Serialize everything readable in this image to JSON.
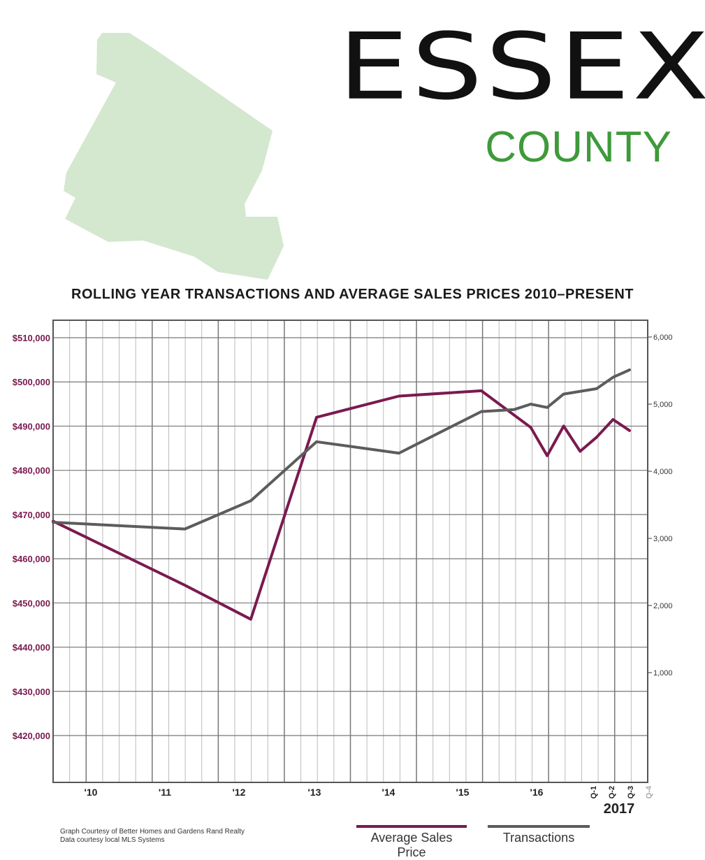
{
  "header": {
    "title": "ESSEX",
    "subtitle": "COUNTY"
  },
  "colors": {
    "map_fill": "#d4e7cf",
    "subtitle": "#3e9a3a",
    "price_line": "#7a1a4f",
    "transactions_line": "#5c5c5c",
    "grid_major": "#777777",
    "grid_minor": "#bbbbbb",
    "axis_label_left": "#7a1a4f"
  },
  "chart_data": {
    "type": "line",
    "title": "ROLLING YEAR TRANSACTIONS AND AVERAGE SALES PRICES 2010–PRESENT",
    "x_tick_labels": [
      "'10",
      "'11",
      "'12",
      "'13",
      "'14",
      "'15",
      "'16",
      "Q-1",
      "Q-2",
      "Q-3",
      "Q-4"
    ],
    "x_year_label": "2017",
    "left_axis": {
      "ticks": [
        "$510,000",
        "$500,000",
        "$490,000",
        "$480,000",
        "$470,000",
        "$460,000",
        "$450,000",
        "$440,000",
        "$430,000",
        "$420,000"
      ],
      "tick_values": [
        510000,
        500000,
        490000,
        480000,
        470000,
        460000,
        450000,
        440000,
        430000,
        420000
      ]
    },
    "right_axis": {
      "ticks": [
        "6,000",
        "5,000",
        "4,000",
        "3,000",
        "2,000",
        "1,000"
      ],
      "tick_values": [
        6000,
        5000,
        4000,
        3000,
        2000,
        1000
      ]
    },
    "series": [
      {
        "name": "Average Sales Price",
        "axis": "left",
        "points": [
          [
            0,
            468500
          ],
          [
            8,
            454000
          ],
          [
            12,
            446300
          ],
          [
            16,
            492000
          ],
          [
            21,
            496800
          ],
          [
            26,
            498000
          ],
          [
            29,
            489700
          ],
          [
            30,
            483300
          ],
          [
            31,
            490000
          ],
          [
            32,
            484300
          ],
          [
            33,
            487500
          ],
          [
            34,
            491500
          ],
          [
            35,
            489000
          ]
        ]
      },
      {
        "name": "Transactions",
        "axis": "right",
        "points": [
          [
            0,
            3240
          ],
          [
            8,
            3140
          ],
          [
            12,
            3560
          ],
          [
            16,
            4440
          ],
          [
            21,
            4270
          ],
          [
            26,
            4890
          ],
          [
            28,
            4920
          ],
          [
            29,
            5000
          ],
          [
            30,
            4950
          ],
          [
            31,
            5150
          ],
          [
            33,
            5230
          ],
          [
            34,
            5400
          ],
          [
            35,
            5510
          ]
        ]
      }
    ],
    "legend": [
      "Average Sales Price",
      "Transactions"
    ],
    "legend_position": "bottom"
  },
  "footer": {
    "credit_line1": "Graph Courtesy of Better Homes and Gardens Rand Realty",
    "credit_line2": "Data courtesy local MLS Systems"
  }
}
